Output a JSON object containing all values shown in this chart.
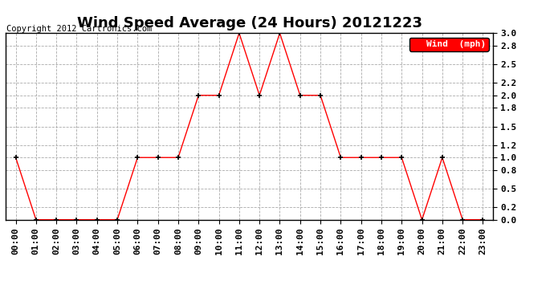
{
  "title": "Wind Speed Average (24 Hours) 20121223",
  "copyright": "Copyright 2012 Cartronics.com",
  "legend_label": "Wind  (mph)",
  "x_labels": [
    "00:00",
    "01:00",
    "02:00",
    "03:00",
    "04:00",
    "05:00",
    "06:00",
    "07:00",
    "08:00",
    "09:00",
    "10:00",
    "11:00",
    "12:00",
    "13:00",
    "14:00",
    "15:00",
    "16:00",
    "17:00",
    "18:00",
    "19:00",
    "20:00",
    "21:00",
    "22:00",
    "23:00"
  ],
  "y_values": [
    1.0,
    0.0,
    0.0,
    0.0,
    0.0,
    0.0,
    1.0,
    1.0,
    1.0,
    2.0,
    2.0,
    3.0,
    2.0,
    3.0,
    2.0,
    2.0,
    1.0,
    1.0,
    1.0,
    1.0,
    0.0,
    1.0,
    0.0,
    0.0
  ],
  "ylim": [
    0.0,
    3.0
  ],
  "yticks": [
    0.0,
    0.2,
    0.5,
    0.8,
    1.0,
    1.2,
    1.5,
    1.8,
    2.0,
    2.2,
    2.5,
    2.8,
    3.0
  ],
  "line_color": "red",
  "marker_color": "black",
  "bg_color": "white",
  "grid_color": "#aaaaaa",
  "title_fontsize": 13,
  "copyright_fontsize": 7.5,
  "tick_fontsize": 8,
  "legend_bg": "red",
  "legend_text_color": "white",
  "legend_fontsize": 8
}
